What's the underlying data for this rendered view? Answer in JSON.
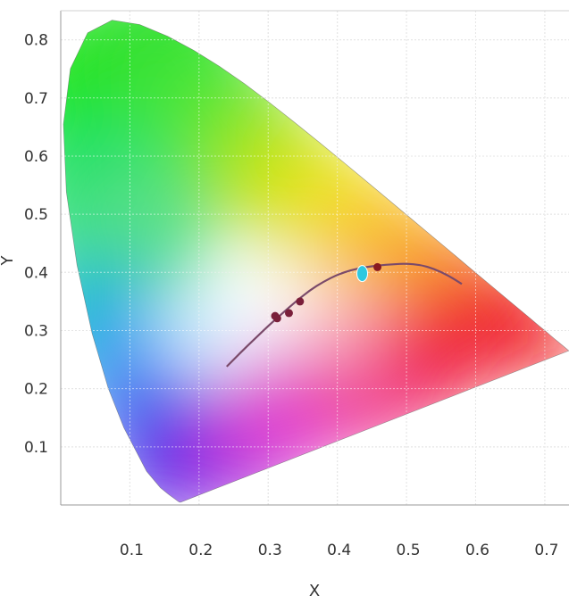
{
  "chart_data": {
    "type": "scatter",
    "title": "",
    "xlabel": "X",
    "ylabel": "Y",
    "xlim": [
      0.0,
      0.735
    ],
    "ylim": [
      0.0,
      0.85
    ],
    "x_ticks": [
      "0.1",
      "0.2",
      "0.3",
      "0.4",
      "0.5",
      "0.6",
      "0.7"
    ],
    "x_tick_values": [
      0.1,
      0.2,
      0.3,
      0.4,
      0.5,
      0.6,
      0.7
    ],
    "y_ticks": [
      "0.1",
      "0.2",
      "0.3",
      "0.4",
      "0.5",
      "0.6",
      "0.7",
      "0.8"
    ],
    "y_tick_values": [
      0.1,
      0.2,
      0.3,
      0.4,
      0.5,
      0.6,
      0.7,
      0.8
    ],
    "grid": true,
    "spectral_locus": [
      [
        0.1741,
        0.005
      ],
      [
        0.1738,
        0.0049
      ],
      [
        0.1733,
        0.0048
      ],
      [
        0.1726,
        0.0048
      ],
      [
        0.1714,
        0.0051
      ],
      [
        0.1689,
        0.0069
      ],
      [
        0.1644,
        0.0109
      ],
      [
        0.1566,
        0.0177
      ],
      [
        0.144,
        0.0297
      ],
      [
        0.1241,
        0.0578
      ],
      [
        0.0913,
        0.1327
      ],
      [
        0.0687,
        0.2007
      ],
      [
        0.0454,
        0.295
      ],
      [
        0.0235,
        0.4127
      ],
      [
        0.0082,
        0.5384
      ],
      [
        0.0039,
        0.6548
      ],
      [
        0.0139,
        0.7502
      ],
      [
        0.0389,
        0.812
      ],
      [
        0.0743,
        0.8338
      ],
      [
        0.1142,
        0.8262
      ],
      [
        0.1547,
        0.8059
      ],
      [
        0.1929,
        0.7816
      ],
      [
        0.2296,
        0.7543
      ],
      [
        0.2658,
        0.7243
      ],
      [
        0.3016,
        0.6923
      ],
      [
        0.3373,
        0.6589
      ],
      [
        0.3731,
        0.6245
      ],
      [
        0.4087,
        0.5896
      ],
      [
        0.4441,
        0.5547
      ],
      [
        0.4788,
        0.5202
      ],
      [
        0.5125,
        0.4866
      ],
      [
        0.5448,
        0.4544
      ],
      [
        0.5752,
        0.4242
      ],
      [
        0.6029,
        0.3965
      ],
      [
        0.627,
        0.3725
      ],
      [
        0.6482,
        0.3514
      ],
      [
        0.6658,
        0.334
      ],
      [
        0.6801,
        0.3197
      ],
      [
        0.6915,
        0.3083
      ],
      [
        0.7006,
        0.2993
      ],
      [
        0.7079,
        0.292
      ],
      [
        0.714,
        0.2859
      ],
      [
        0.719,
        0.2809
      ],
      [
        0.723,
        0.277
      ],
      [
        0.726,
        0.274
      ],
      [
        0.7347,
        0.2653
      ]
    ],
    "planckian_locus": [
      [
        0.24,
        0.238
      ],
      [
        0.26,
        0.262
      ],
      [
        0.28,
        0.285
      ],
      [
        0.3,
        0.308
      ],
      [
        0.32,
        0.329
      ],
      [
        0.34,
        0.35
      ],
      [
        0.36,
        0.369
      ],
      [
        0.38,
        0.384
      ],
      [
        0.4,
        0.396
      ],
      [
        0.42,
        0.404
      ],
      [
        0.44,
        0.409
      ],
      [
        0.46,
        0.412
      ],
      [
        0.48,
        0.414
      ],
      [
        0.5,
        0.415
      ],
      [
        0.52,
        0.413
      ],
      [
        0.54,
        0.406
      ],
      [
        0.56,
        0.395
      ],
      [
        0.58,
        0.38
      ]
    ],
    "points": [
      {
        "x": 0.31,
        "y": 0.325,
        "color": "#7a1f3a"
      },
      {
        "x": 0.313,
        "y": 0.321,
        "color": "#7a1f3a"
      },
      {
        "x": 0.33,
        "y": 0.33,
        "color": "#7a1f3a"
      },
      {
        "x": 0.346,
        "y": 0.35,
        "color": "#7a1f3a"
      },
      {
        "x": 0.436,
        "y": 0.398,
        "color": "#2ec8e0"
      },
      {
        "x": 0.458,
        "y": 0.409,
        "color": "#8a1a20"
      }
    ],
    "colors": {
      "locus_line": "#7a4a6a",
      "grid": "#c8c8c8",
      "axis": "#999999",
      "highlight_point": "#2ec8e0",
      "point": "#7a1f3a"
    }
  }
}
